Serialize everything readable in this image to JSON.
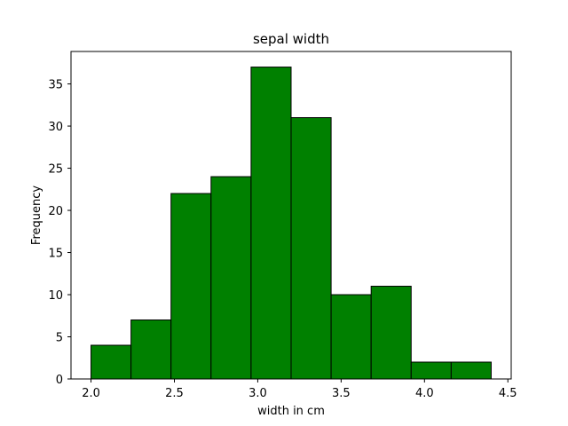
{
  "chart_data": {
    "type": "bar",
    "title": "sepal width",
    "xlabel": "width in cm",
    "ylabel": "Frequency",
    "bins": [
      {
        "start": 2.0,
        "end": 2.24,
        "count": 4
      },
      {
        "start": 2.24,
        "end": 2.48,
        "count": 7
      },
      {
        "start": 2.48,
        "end": 2.72,
        "count": 22
      },
      {
        "start": 2.72,
        "end": 2.96,
        "count": 24
      },
      {
        "start": 2.96,
        "end": 3.2,
        "count": 37
      },
      {
        "start": 3.2,
        "end": 3.44,
        "count": 31
      },
      {
        "start": 3.44,
        "end": 3.68,
        "count": 10
      },
      {
        "start": 3.68,
        "end": 3.92,
        "count": 11
      },
      {
        "start": 3.92,
        "end": 4.16,
        "count": 2
      },
      {
        "start": 4.16,
        "end": 4.4,
        "count": 2
      }
    ],
    "xlim": [
      1.88,
      4.52
    ],
    "ylim": [
      0,
      38.85
    ],
    "xticks": [
      "2.0",
      "2.5",
      "3.0",
      "3.5",
      "4.0",
      "4.5"
    ],
    "yticks": [
      "0",
      "5",
      "10",
      "15",
      "20",
      "25",
      "30",
      "35"
    ],
    "bar_color": "#008000",
    "edge_color": "#000000",
    "grid": false
  }
}
